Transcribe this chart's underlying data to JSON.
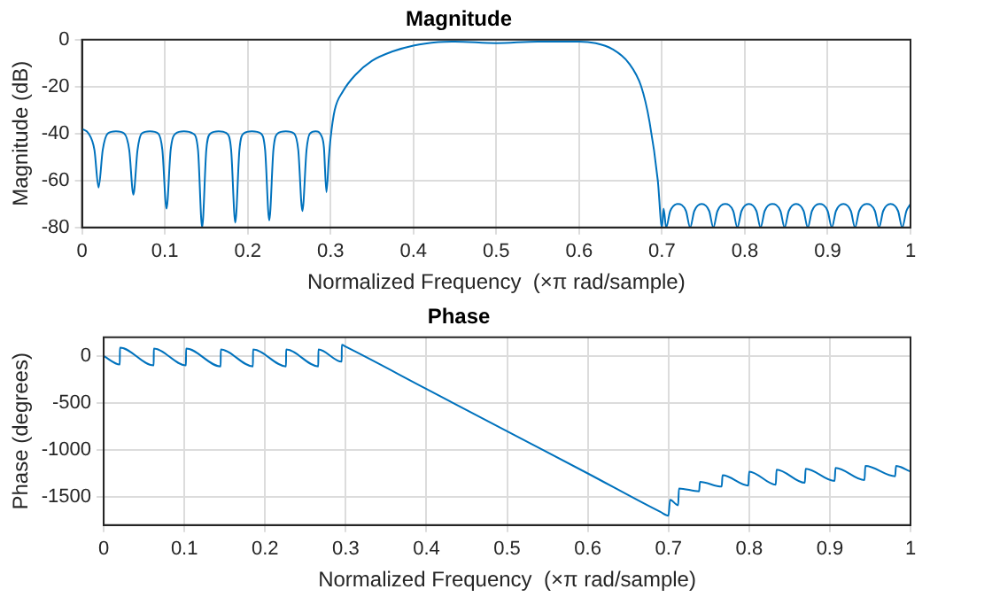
{
  "chart_data": [
    {
      "type": "line",
      "title": "Magnitude",
      "xlabel": "Normalized Frequency  (×π rad/sample)",
      "ylabel": "Magnitude (dB)",
      "xlim": [
        0,
        1
      ],
      "xticks": [
        0,
        0.1,
        0.2,
        0.3,
        0.4,
        0.5,
        0.6,
        0.7,
        0.8,
        0.9,
        1
      ],
      "ylim": [
        -80,
        0
      ],
      "yticks": [
        -80,
        -60,
        -40,
        -20,
        0
      ],
      "grid": true,
      "marker": "none",
      "line_style": "solid",
      "x": [
        0,
        0.008,
        0.015,
        0.02,
        0.025,
        0.031,
        0.041,
        0.051,
        0.057,
        0.062,
        0.067,
        0.072,
        0.082,
        0.092,
        0.097,
        0.102,
        0.107,
        0.113,
        0.123,
        0.134,
        0.14,
        0.145,
        0.15,
        0.155,
        0.165,
        0.175,
        0.18,
        0.185,
        0.19,
        0.195,
        0.205,
        0.216,
        0.221,
        0.226,
        0.231,
        0.236,
        0.246,
        0.256,
        0.261,
        0.266,
        0.271,
        0.275,
        0.282,
        0.289,
        0.292,
        0.295,
        0.298,
        0.3,
        0.305,
        0.315,
        0.33,
        0.35,
        0.375,
        0.4,
        0.43,
        0.45,
        0.5,
        0.55,
        0.6,
        0.62,
        0.64,
        0.66,
        0.675,
        0.685,
        0.695,
        0.7,
        0.702,
        0.705,
        0.71,
        0.719,
        0.729,
        0.734,
        0.739,
        0.748,
        0.757,
        0.762,
        0.767,
        0.776,
        0.786,
        0.791,
        0.796,
        0.805,
        0.814,
        0.819,
        0.824,
        0.833,
        0.843,
        0.848,
        0.853,
        0.862,
        0.871,
        0.876,
        0.881,
        0.89,
        0.9,
        0.905,
        0.91,
        0.919,
        0.928,
        0.933,
        0.938,
        0.947,
        0.957,
        0.962,
        0.967,
        0.976,
        0.985,
        0.99,
        0.995,
        1.0
      ],
      "series": [
        {
          "color": "#0072bd",
          "values": [
            -38,
            -40,
            -47,
            -63,
            -47,
            -40,
            -39,
            -40,
            -47,
            -66,
            -47,
            -40,
            -39,
            -40,
            -47,
            -72,
            -47,
            -40,
            -39,
            -40,
            -47,
            -80,
            -47,
            -40,
            -39,
            -40,
            -47,
            -78,
            -47,
            -40,
            -39,
            -40,
            -47,
            -77,
            -47,
            -40,
            -39,
            -40,
            -47,
            -73,
            -47,
            -40,
            -39,
            -41,
            -46,
            -65,
            -50,
            -42,
            -30,
            -22,
            -15,
            -9,
            -5,
            -2.5,
            -1,
            -0.8,
            -1.5,
            -0.8,
            -0.8,
            -1.5,
            -4,
            -10,
            -20,
            -35,
            -60,
            -80,
            -72,
            -80,
            -73,
            -70,
            -73,
            -80,
            -73,
            -70,
            -73,
            -80,
            -73,
            -70,
            -73,
            -80,
            -73,
            -70,
            -73,
            -80,
            -73,
            -70,
            -73,
            -80,
            -73,
            -70,
            -73,
            -80,
            -73,
            -70,
            -73,
            -80,
            -73,
            -70,
            -73,
            -80,
            -73,
            -70,
            -73,
            -80,
            -73,
            -70,
            -73,
            -80,
            -73,
            -70
          ]
        }
      ]
    },
    {
      "type": "line",
      "title": "Phase",
      "xlabel": "Normalized Frequency  (×π rad/sample)",
      "ylabel": "Phase (degrees)",
      "xlim": [
        0,
        1
      ],
      "xticks": [
        0,
        0.1,
        0.2,
        0.3,
        0.4,
        0.5,
        0.6,
        0.7,
        0.8,
        0.9,
        1
      ],
      "ylim": [
        -1800,
        200
      ],
      "yticks": [
        -1500,
        -1000,
        -500,
        0
      ],
      "grid": true,
      "marker": "none",
      "line_style": "solid",
      "x": [
        0,
        0.02,
        0.0201,
        0.062,
        0.0621,
        0.102,
        0.1021,
        0.145,
        0.1451,
        0.185,
        0.1851,
        0.226,
        0.2261,
        0.266,
        0.2661,
        0.295,
        0.2951,
        0.3,
        0.4,
        0.5,
        0.6,
        0.69,
        0.7,
        0.702,
        0.712,
        0.713,
        0.738,
        0.739,
        0.766,
        0.767,
        0.799,
        0.8,
        0.833,
        0.834,
        0.869,
        0.87,
        0.906,
        0.907,
        0.943,
        0.944,
        0.981,
        0.982,
        1.0
      ],
      "series": [
        {
          "color": "#0072bd",
          "values": [
            0,
            -90,
            90,
            -100,
            80,
            -100,
            80,
            -110,
            70,
            -110,
            70,
            -110,
            70,
            -110,
            70,
            -60,
            120,
            100,
            -350,
            -800,
            -1250,
            -1660,
            -1700,
            -1530,
            -1590,
            -1410,
            -1440,
            -1340,
            -1390,
            -1270,
            -1380,
            -1230,
            -1370,
            -1210,
            -1350,
            -1200,
            -1330,
            -1190,
            -1320,
            -1170,
            -1280,
            -1170,
            -1230
          ]
        }
      ]
    }
  ]
}
